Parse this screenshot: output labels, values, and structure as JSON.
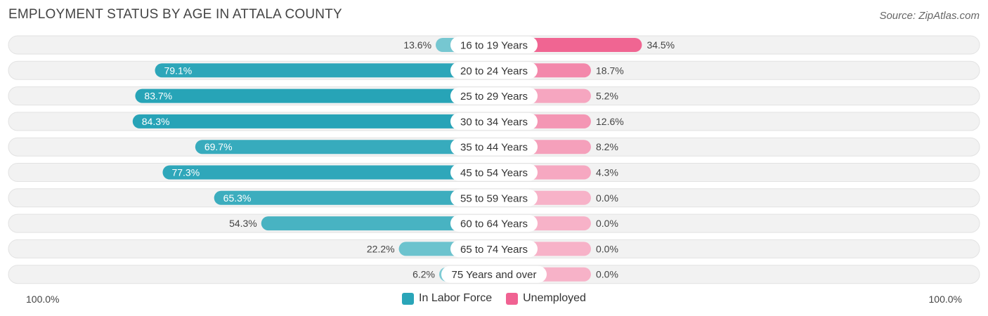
{
  "header": {
    "title": "EMPLOYMENT STATUS BY AGE IN ATTALA COUNTY",
    "source": "Source: ZipAtlas.com"
  },
  "axis": {
    "left_label": "100.0%",
    "right_label": "100.0%"
  },
  "legend": [
    {
      "name": "In Labor Force",
      "color": "#2aa5b8"
    },
    {
      "name": "Unemployed",
      "color": "#f06292"
    }
  ],
  "chart_data": {
    "type": "bar",
    "title": "EMPLOYMENT STATUS BY AGE IN ATTALA COUNTY",
    "orientation": "diverging-horizontal",
    "categories": [
      "16 to 19 Years",
      "20 to 24 Years",
      "25 to 29 Years",
      "30 to 34 Years",
      "35 to 44 Years",
      "45 to 54 Years",
      "55 to 59 Years",
      "60 to 64 Years",
      "65 to 74 Years",
      "75 Years and over"
    ],
    "series": [
      {
        "name": "In Labor Force",
        "values": [
          13.6,
          79.1,
          83.7,
          84.3,
          69.7,
          77.3,
          65.3,
          54.3,
          22.2,
          6.2
        ],
        "labels": [
          "13.6%",
          "79.1%",
          "83.7%",
          "84.3%",
          "69.7%",
          "77.3%",
          "65.3%",
          "54.3%",
          "22.2%",
          "6.2%"
        ]
      },
      {
        "name": "Unemployed",
        "values": [
          34.5,
          18.7,
          5.2,
          12.6,
          8.2,
          4.3,
          0.0,
          0.0,
          0.0,
          0.0
        ],
        "labels": [
          "34.5%",
          "18.7%",
          "5.2%",
          "12.6%",
          "8.2%",
          "4.3%",
          "0.0%",
          "0.0%",
          "0.0%",
          "0.0%"
        ]
      }
    ],
    "xlim": [
      -100,
      100
    ],
    "xlabel_left": "100.0%",
    "xlabel_right": "100.0%",
    "legend_position": "bottom-center"
  }
}
